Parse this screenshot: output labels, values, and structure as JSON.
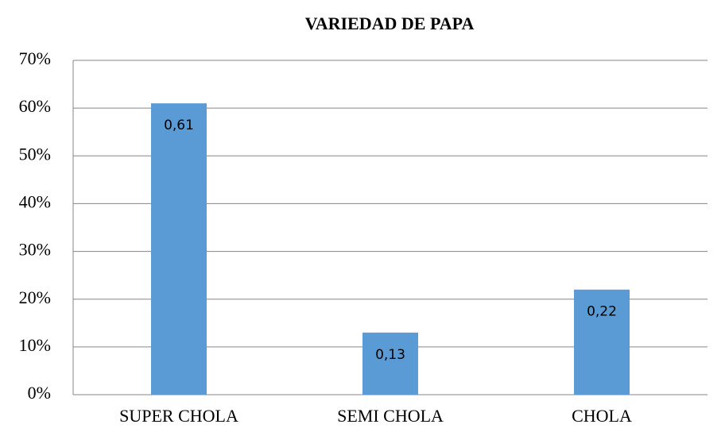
{
  "chart_data": {
    "type": "bar",
    "title": "VARIEDAD DE PAPA",
    "categories": [
      "SUPER CHOLA",
      "SEMI CHOLA",
      "CHOLA"
    ],
    "values": [
      61,
      13,
      22
    ],
    "value_labels": [
      "0,61",
      "0,13",
      "0,22"
    ],
    "color": "#5b9bd5",
    "ylim": [
      0,
      70
    ],
    "yticks": [
      {
        "value": 0,
        "label": "0%"
      },
      {
        "value": 10,
        "label": "10%"
      },
      {
        "value": 20,
        "label": "20%"
      },
      {
        "value": 30,
        "label": "30%"
      },
      {
        "value": 40,
        "label": "40%"
      },
      {
        "value": 50,
        "label": "50%"
      },
      {
        "value": 60,
        "label": "60%"
      },
      {
        "value": 70,
        "label": "70%"
      }
    ],
    "grid": true
  }
}
